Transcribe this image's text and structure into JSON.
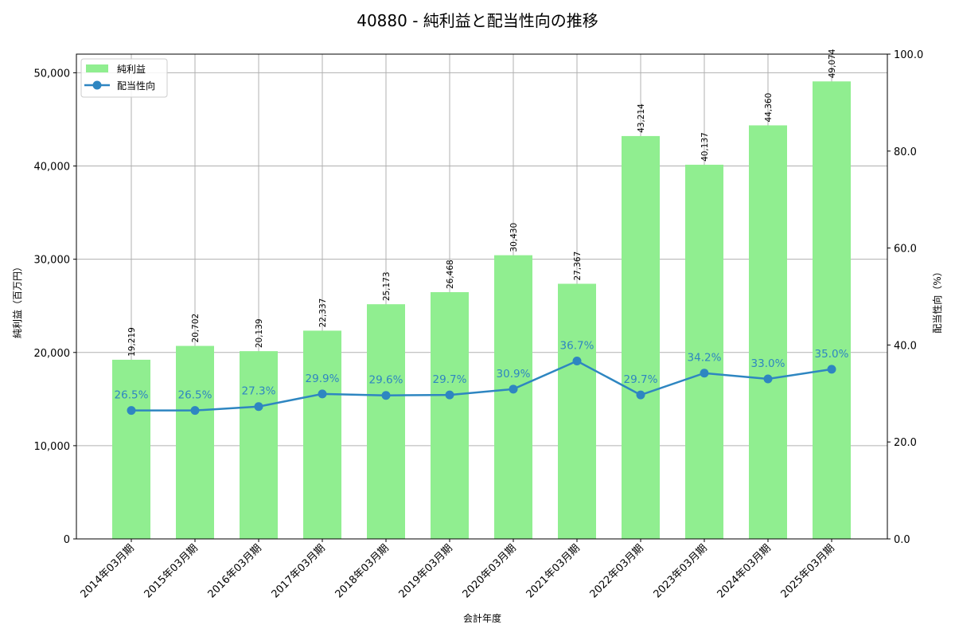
{
  "chart_data": {
    "type": "bar+line",
    "title": "40880 - 純利益と配当性向の推移",
    "xlabel": "会計年度",
    "ylabel_left": "純利益（百万円）",
    "ylabel_right": "配当性向（%）",
    "categories": [
      "2014年03月期",
      "2015年03月期",
      "2016年03月期",
      "2017年03月期",
      "2018年03月期",
      "2019年03月期",
      "2020年03月期",
      "2021年03月期",
      "2022年03月期",
      "2023年03月期",
      "2024年03月期",
      "2025年03月期"
    ],
    "series": [
      {
        "name": "純利益",
        "type": "bar",
        "axis": "left",
        "color": "#90ee90",
        "values": [
          19219,
          20702,
          20139,
          22337,
          25173,
          26468,
          30430,
          27367,
          43214,
          40137,
          44360,
          49074
        ],
        "labels": [
          "19,219",
          "20,702",
          "20,139",
          "22,337",
          "25,173",
          "26,468",
          "30,430",
          "27,367",
          "43,214",
          "40,137",
          "44,360",
          "49,074"
        ]
      },
      {
        "name": "配当性向",
        "type": "line",
        "axis": "right",
        "color": "#2e86c1",
        "values": [
          26.5,
          26.5,
          27.3,
          29.9,
          29.6,
          29.7,
          30.9,
          36.7,
          29.7,
          34.2,
          33.0,
          35.0
        ],
        "labels": [
          "26.5%",
          "26.5%",
          "27.3%",
          "29.9%",
          "29.6%",
          "29.7%",
          "30.9%",
          "36.7%",
          "29.7%",
          "34.2%",
          "33.0%",
          "35.0%"
        ]
      }
    ],
    "ylim_left": [
      0,
      52000
    ],
    "ylim_right": [
      0,
      100
    ],
    "yticks_left": [
      "0",
      "10,000",
      "20,000",
      "30,000",
      "40,000",
      "50,000"
    ],
    "yticks_left_values": [
      0,
      10000,
      20000,
      30000,
      40000,
      50000
    ],
    "yticks_right": [
      "0.0",
      "20.0",
      "40.0",
      "60.0",
      "80.0",
      "100.0"
    ],
    "yticks_right_values": [
      0,
      20,
      40,
      60,
      80,
      100
    ],
    "grid": true,
    "legend_position": "upper left"
  }
}
